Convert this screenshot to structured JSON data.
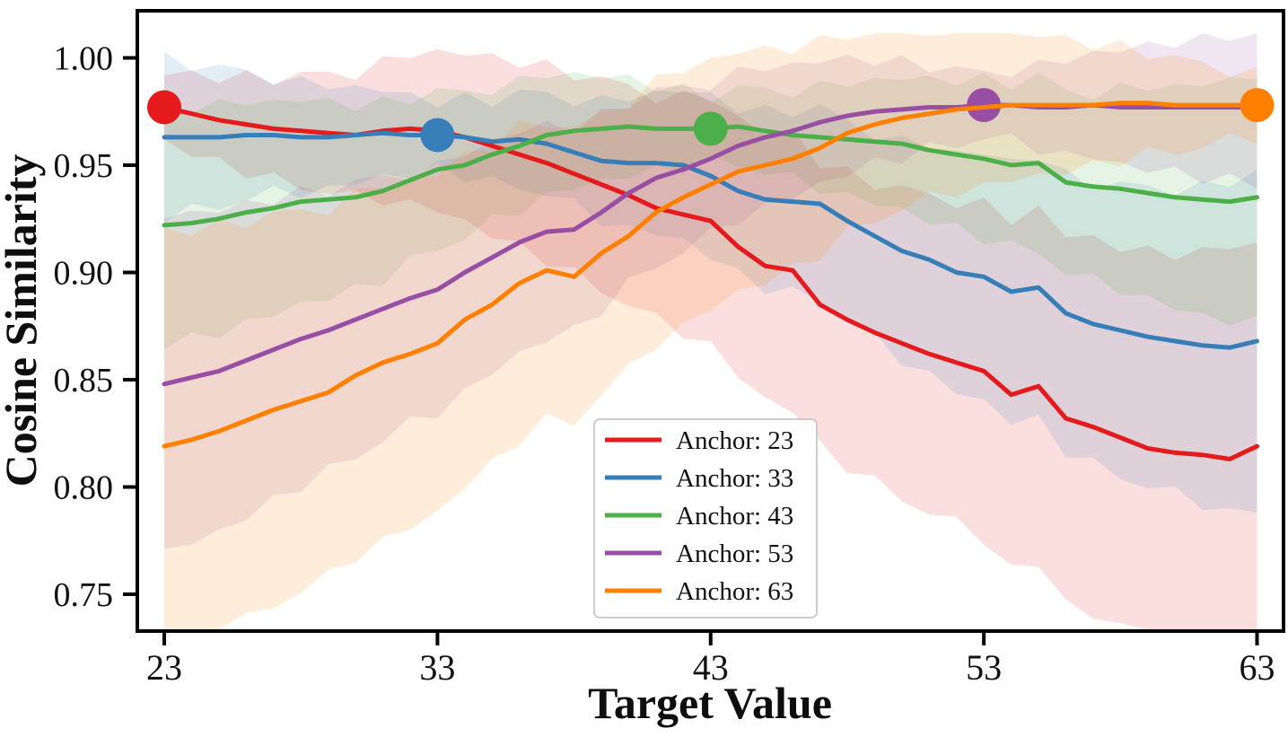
{
  "figure": {
    "background": "#ffffff",
    "text_color": "#111111",
    "spine_color": "#000000"
  },
  "axes": {
    "xlabel": "Target Value",
    "ylabel": "Cosine Similarity",
    "yticks": [
      {
        "label": "1.00",
        "value": 1.0
      },
      {
        "label": "0.95",
        "value": 0.95
      },
      {
        "label": "0.90",
        "value": 0.9
      },
      {
        "label": "0.85",
        "value": 0.85
      },
      {
        "label": "0.80",
        "value": 0.8
      },
      {
        "label": "0.75",
        "value": 0.75
      }
    ],
    "xticks": [
      {
        "label": "23",
        "value": 23
      },
      {
        "label": "33",
        "value": 33
      },
      {
        "label": "43",
        "value": 43
      },
      {
        "label": "53",
        "value": 53
      },
      {
        "label": "63",
        "value": 63
      }
    ]
  },
  "legend": {
    "items": [
      {
        "label": "Anchor: 23",
        "color": "#e41a1c"
      },
      {
        "label": "Anchor: 33",
        "color": "#377eb8"
      },
      {
        "label": "Anchor: 43",
        "color": "#4daf4a"
      },
      {
        "label": "Anchor: 53",
        "color": "#984ea3"
      },
      {
        "label": "Anchor: 63",
        "color": "#ff7f00"
      }
    ]
  },
  "chart_data": {
    "type": "line",
    "title": "",
    "xlabel": "Target Value",
    "ylabel": "Cosine Similarity",
    "x_start": 23,
    "x_end": 63,
    "x_step": 1,
    "xlim": [
      22,
      64
    ],
    "ylim": [
      0.733,
      1.022
    ],
    "grid": false,
    "legend_position": "lower-center",
    "band_note": "each line has a shaded min-max style confidence band that widens with distance from its anchor",
    "band_base_halfwidth": 0.015,
    "band_halfwidth_per_unit": 0.0021,
    "series": [
      {
        "name": "Anchor: 23",
        "color": "#e41a1c",
        "anchor_x": 23,
        "marker": {
          "x": 23,
          "y": 0.977
        },
        "values": [
          0.977,
          0.974,
          0.971,
          0.969,
          0.967,
          0.966,
          0.965,
          0.964,
          0.966,
          0.967,
          0.966,
          0.963,
          0.959,
          0.955,
          0.951,
          0.946,
          0.941,
          0.936,
          0.93,
          0.927,
          0.924,
          0.912,
          0.903,
          0.901,
          0.885,
          0.878,
          0.872,
          0.867,
          0.862,
          0.858,
          0.854,
          0.843,
          0.847,
          0.832,
          0.828,
          0.823,
          0.818,
          0.816,
          0.815,
          0.813,
          0.819
        ]
      },
      {
        "name": "Anchor: 33",
        "color": "#377eb8",
        "anchor_x": 33,
        "marker": {
          "x": 33,
          "y": 0.964
        },
        "values": [
          0.963,
          0.963,
          0.963,
          0.964,
          0.964,
          0.963,
          0.963,
          0.964,
          0.965,
          0.964,
          0.964,
          0.963,
          0.961,
          0.962,
          0.96,
          0.956,
          0.952,
          0.951,
          0.951,
          0.95,
          0.945,
          0.938,
          0.934,
          0.933,
          0.932,
          0.924,
          0.917,
          0.91,
          0.906,
          0.9,
          0.898,
          0.891,
          0.893,
          0.881,
          0.876,
          0.873,
          0.87,
          0.868,
          0.866,
          0.865,
          0.868
        ]
      },
      {
        "name": "Anchor: 43",
        "color": "#4daf4a",
        "anchor_x": 43,
        "marker": {
          "x": 43,
          "y": 0.967
        },
        "values": [
          0.922,
          0.923,
          0.925,
          0.928,
          0.93,
          0.933,
          0.934,
          0.935,
          0.938,
          0.943,
          0.948,
          0.95,
          0.955,
          0.959,
          0.964,
          0.966,
          0.967,
          0.968,
          0.967,
          0.967,
          0.967,
          0.968,
          0.966,
          0.964,
          0.963,
          0.962,
          0.961,
          0.96,
          0.957,
          0.955,
          0.953,
          0.95,
          0.951,
          0.942,
          0.94,
          0.939,
          0.937,
          0.935,
          0.934,
          0.933,
          0.935
        ]
      },
      {
        "name": "Anchor: 53",
        "color": "#984ea3",
        "anchor_x": 53,
        "marker": {
          "x": 53,
          "y": 0.978
        },
        "values": [
          0.848,
          0.851,
          0.854,
          0.859,
          0.864,
          0.869,
          0.873,
          0.878,
          0.883,
          0.888,
          0.892,
          0.9,
          0.907,
          0.914,
          0.919,
          0.92,
          0.928,
          0.937,
          0.944,
          0.948,
          0.953,
          0.959,
          0.963,
          0.966,
          0.97,
          0.973,
          0.975,
          0.976,
          0.977,
          0.977,
          0.978,
          0.978,
          0.977,
          0.977,
          0.978,
          0.977,
          0.977,
          0.977,
          0.977,
          0.977,
          0.977
        ]
      },
      {
        "name": "Anchor: 63",
        "color": "#ff7f00",
        "anchor_x": 63,
        "marker": {
          "x": 63,
          "y": 0.978
        },
        "values": [
          0.819,
          0.822,
          0.826,
          0.831,
          0.836,
          0.84,
          0.844,
          0.852,
          0.858,
          0.862,
          0.867,
          0.878,
          0.885,
          0.895,
          0.901,
          0.898,
          0.909,
          0.917,
          0.928,
          0.935,
          0.941,
          0.947,
          0.95,
          0.953,
          0.958,
          0.965,
          0.969,
          0.972,
          0.974,
          0.976,
          0.977,
          0.978,
          0.978,
          0.978,
          0.978,
          0.979,
          0.979,
          0.978,
          0.978,
          0.978,
          0.978
        ]
      }
    ]
  }
}
